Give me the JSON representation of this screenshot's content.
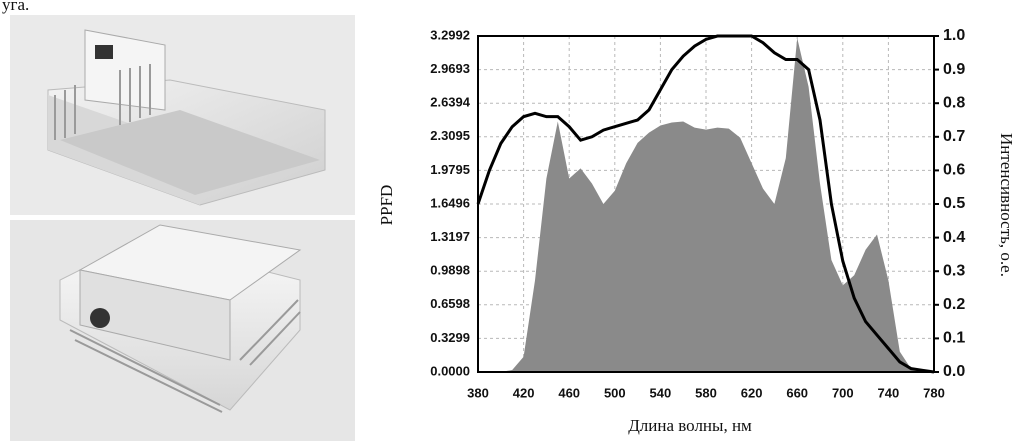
{
  "caption": "уга.",
  "chart_data": {
    "type": "area",
    "xlabel": "Длина волны, нм",
    "ylabel": "PPFD",
    "y2label": "Интенсивность, о.е.",
    "x": [
      380,
      390,
      400,
      410,
      420,
      430,
      440,
      450,
      460,
      470,
      480,
      490,
      500,
      510,
      520,
      530,
      540,
      550,
      560,
      570,
      580,
      590,
      600,
      610,
      620,
      630,
      640,
      650,
      660,
      670,
      680,
      690,
      700,
      710,
      720,
      730,
      740,
      750,
      760,
      770,
      780
    ],
    "series": [
      {
        "color": "#8a8a8a",
        "values": [
          0,
          0,
          0,
          0.02,
          0.15,
          0.9,
          1.9,
          2.46,
          1.9,
          2.0,
          1.85,
          1.65,
          1.78,
          2.05,
          2.25,
          2.35,
          2.42,
          2.45,
          2.46,
          2.4,
          2.38,
          2.4,
          2.39,
          2.3,
          2.05,
          1.8,
          1.65,
          2.1,
          3.28,
          2.8,
          1.85,
          1.1,
          0.85,
          0.95,
          1.2,
          1.35,
          0.9,
          0.2,
          0.03,
          0,
          0
        ]
      },
      {
        "type": "line",
        "axis": "y2",
        "color": "#000000",
        "values": [
          0.5,
          0.6,
          0.68,
          0.73,
          0.76,
          0.77,
          0.76,
          0.76,
          0.73,
          0.69,
          0.7,
          0.72,
          0.73,
          0.74,
          0.75,
          0.78,
          0.84,
          0.9,
          0.94,
          0.97,
          0.99,
          1.0,
          1.0,
          1.0,
          1.0,
          0.98,
          0.95,
          0.93,
          0.93,
          0.9,
          0.75,
          0.5,
          0.33,
          0.22,
          0.15,
          0.11,
          0.07,
          0.03,
          0.01,
          0.005,
          0
        ]
      }
    ],
    "xlim": [
      380,
      780
    ],
    "xticks": [
      380,
      420,
      460,
      500,
      540,
      580,
      620,
      660,
      700,
      740,
      780
    ],
    "ylim": [
      0,
      3.2992
    ],
    "yticks": [
      {
        "value": 0,
        "label": "0.0000"
      },
      0.3299,
      0.6598,
      0.9898,
      1.3197,
      1.6496,
      1.9795,
      2.3095,
      2.6394,
      2.9693,
      3.2992
    ],
    "y2lim": [
      0,
      1
    ],
    "y2ticks": [
      {
        "value": 0,
        "label": "0.0"
      },
      0.1,
      0.2,
      0.3,
      0.4,
      0.5,
      0.6,
      0.7,
      0.8,
      0.9,
      {
        "value": 1,
        "label": "1.0"
      }
    ],
    "grid": true
  }
}
